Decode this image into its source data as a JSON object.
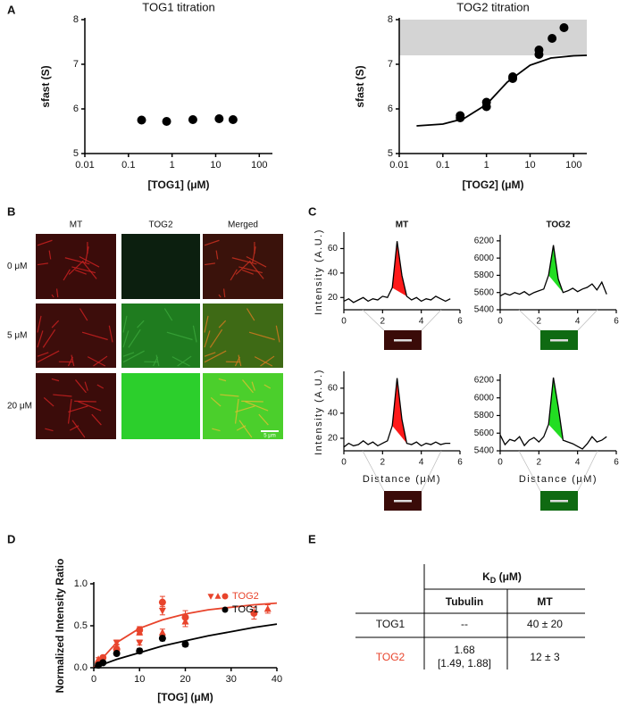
{
  "panel_labels": [
    "A",
    "B",
    "C",
    "D",
    "E"
  ],
  "chart_data": [
    {
      "type": "scatter",
      "title": "TOG1 titration",
      "x_label": "[TOG1] (μM)",
      "y_label": "sfast (S)",
      "xscale": "log",
      "xlim": [
        0.01,
        200
      ],
      "xticks": [
        0.01,
        0.1,
        1,
        10,
        100
      ],
      "ylim": [
        5,
        8
      ],
      "yticks": [
        5,
        6,
        7,
        8
      ],
      "series": [
        {
          "color": "#000000",
          "marker": "circle",
          "x": [
            0.2,
            0.75,
            3,
            12,
            25
          ],
          "values": [
            5.75,
            5.72,
            5.76,
            5.78,
            5.76
          ]
        }
      ]
    },
    {
      "type": "scatter",
      "title": "TOG2 titration",
      "x_label": "[TOG2] (μM)",
      "y_label": "sfast (S)",
      "xscale": "log",
      "xlim": [
        0.01,
        200
      ],
      "xticks": [
        0.01,
        0.1,
        1,
        10,
        100
      ],
      "ylim": [
        5,
        8
      ],
      "yticks": [
        5,
        6,
        7,
        8
      ],
      "band": [
        7.2,
        8
      ],
      "band_color": "#d4d4d4",
      "series": [
        {
          "color": "#000000",
          "marker": "circle",
          "x": [
            0.25,
            0.25,
            1,
            1,
            4,
            4,
            16,
            16,
            32,
            60
          ],
          "values": [
            5.8,
            5.85,
            6.05,
            6.15,
            6.68,
            6.72,
            7.22,
            7.32,
            7.58,
            7.82
          ],
          "fit": {
            "x": [
              0.025,
              0.1,
              0.3,
              1,
              3,
              10,
              30,
              100,
              200
            ],
            "values": [
              5.62,
              5.66,
              5.78,
              6.1,
              6.6,
              6.98,
              7.14,
              7.19,
              7.2
            ]
          }
        }
      ]
    },
    {
      "type": "line",
      "title": "MT",
      "y_label": "Intensity (A.U.)",
      "xlim": [
        0,
        6
      ],
      "xticks": [
        0,
        2,
        4,
        6
      ],
      "ylim": [
        10,
        72
      ],
      "yticks": [
        20,
        40,
        60
      ],
      "series": [
        {
          "color": "#000000",
          "highlight": [
            2.4,
            3.3
          ],
          "highlight_color": "#ff1a1a",
          "x": [
            0,
            0.25,
            0.5,
            0.75,
            1,
            1.25,
            1.5,
            1.75,
            2,
            2.25,
            2.5,
            2.75,
            3,
            3.25,
            3.5,
            3.75,
            4,
            4.25,
            4.5,
            4.75,
            5,
            5.25,
            5.5
          ],
          "values": [
            17,
            19,
            16,
            18,
            20,
            17,
            19,
            18,
            21,
            20,
            28,
            66,
            38,
            21,
            18,
            20,
            17,
            19,
            18,
            21,
            19,
            17,
            19
          ]
        }
      ]
    },
    {
      "type": "line",
      "title": "TOG2",
      "xlim": [
        0,
        6
      ],
      "xticks": [
        0,
        2,
        4,
        6
      ],
      "ylim": [
        5400,
        6250
      ],
      "yticks": [
        5400,
        5600,
        5800,
        6000,
        6200
      ],
      "series": [
        {
          "color": "#000000",
          "highlight": [
            2.4,
            3.3
          ],
          "highlight_color": "#22dd22",
          "x": [
            0,
            0.25,
            0.5,
            0.75,
            1,
            1.25,
            1.5,
            1.75,
            2,
            2.25,
            2.5,
            2.75,
            3,
            3.25,
            3.5,
            3.75,
            4,
            4.25,
            4.5,
            4.75,
            5,
            5.25,
            5.5
          ],
          "values": [
            5560,
            5590,
            5570,
            5600,
            5580,
            5610,
            5570,
            5600,
            5620,
            5640,
            5800,
            6150,
            5760,
            5600,
            5620,
            5650,
            5610,
            5640,
            5660,
            5700,
            5630,
            5720,
            5580
          ]
        }
      ]
    },
    {
      "type": "line",
      "x_label": "Distance (μM)",
      "y_label": "Intensity (A.U.)",
      "xlim": [
        0,
        6
      ],
      "xticks": [
        0,
        2,
        4,
        6
      ],
      "ylim": [
        10,
        72
      ],
      "yticks": [
        20,
        40,
        60
      ],
      "series": [
        {
          "color": "#000000",
          "highlight": [
            2.4,
            3.3
          ],
          "highlight_color": "#ff1a1a",
          "x": [
            0,
            0.25,
            0.5,
            0.75,
            1,
            1.25,
            1.5,
            1.75,
            2,
            2.25,
            2.5,
            2.75,
            3,
            3.25,
            3.5,
            3.75,
            4,
            4.25,
            4.5,
            4.75,
            5,
            5.25,
            5.5
          ],
          "values": [
            13,
            16,
            14,
            15,
            18,
            15,
            17,
            14,
            16,
            18,
            30,
            68,
            35,
            16,
            15,
            17,
            14,
            16,
            15,
            17,
            15,
            16,
            16
          ]
        }
      ]
    },
    {
      "type": "line",
      "x_label": "Distance (μM)",
      "xlim": [
        0,
        6
      ],
      "xticks": [
        0,
        2,
        4,
        6
      ],
      "ylim": [
        5400,
        6250
      ],
      "yticks": [
        5400,
        5600,
        5800,
        6000,
        6200
      ],
      "series": [
        {
          "color": "#000000",
          "highlight": [
            2.4,
            3.3
          ],
          "highlight_color": "#22dd22",
          "x": [
            0,
            0.25,
            0.5,
            0.75,
            1,
            1.25,
            1.5,
            1.75,
            2,
            2.25,
            2.5,
            2.75,
            3,
            3.25,
            3.5,
            3.75,
            4,
            4.25,
            4.5,
            4.75,
            5,
            5.25,
            5.5
          ],
          "values": [
            5580,
            5470,
            5530,
            5510,
            5560,
            5460,
            5520,
            5550,
            5500,
            5560,
            5700,
            6230,
            5900,
            5520,
            5500,
            5480,
            5450,
            5420,
            5480,
            5560,
            5500,
            5520,
            5560
          ]
        }
      ]
    },
    {
      "type": "scatter",
      "x_label": "[TOG] (μM)",
      "y_label": "Normalized Intensity Ratio",
      "xlim": [
        0,
        40
      ],
      "xticks": [
        0,
        10,
        20,
        30,
        40
      ],
      "ylim": [
        0,
        1
      ],
      "yticks": [
        {
          "value": 0,
          "label": "0.0"
        },
        {
          "value": 0.5,
          "label": "0.5"
        },
        {
          "value": 1,
          "label": "1.0"
        }
      ],
      "series": [
        {
          "name": "TOG2",
          "color": "#e8442c",
          "x": [
            1,
            1,
            2,
            5,
            5,
            5,
            10,
            10,
            10,
            15,
            15,
            15,
            20,
            20,
            35,
            38
          ],
          "values": [
            0.05,
            0.1,
            0.12,
            0.22,
            0.3,
            0.25,
            0.45,
            0.42,
            0.3,
            0.78,
            0.68,
            0.42,
            0.6,
            0.55,
            0.65,
            0.7
          ],
          "errors": [
            0.02,
            0.02,
            0.02,
            0.03,
            0.03,
            0.03,
            0.04,
            0.03,
            0.03,
            0.07,
            0.05,
            0.04,
            0.08,
            0.06,
            0.07,
            0.05
          ],
          "markers": [
            "circle",
            "triangle-up",
            "circle",
            "circle",
            "triangle-down",
            "triangle-up",
            "circle",
            "triangle-up",
            "triangle-down",
            "circle",
            "triangle-down",
            "triangle-up",
            "circle",
            "triangle-up",
            "circle",
            "triangle-up"
          ],
          "fit": {
            "x": [
              0,
              5,
              10,
              15,
              20,
              25,
              30,
              35,
              40
            ],
            "values": [
              0,
              0.3,
              0.47,
              0.57,
              0.64,
              0.69,
              0.72,
              0.75,
              0.77
            ]
          }
        },
        {
          "name": "TOG1",
          "color": "#000000",
          "marker": "circle",
          "x": [
            1,
            2,
            5,
            10,
            15,
            20
          ],
          "values": [
            0.03,
            0.06,
            0.17,
            0.2,
            0.35,
            0.28
          ],
          "errors": [
            0.02,
            0.02,
            0.02,
            0.03,
            0.03,
            0.03
          ],
          "fit": {
            "x": [
              0,
              5,
              10,
              15,
              20,
              25,
              30,
              35,
              40
            ],
            "values": [
              0,
              0.1,
              0.18,
              0.26,
              0.32,
              0.38,
              0.43,
              0.48,
              0.52
            ]
          }
        }
      ]
    }
  ],
  "microscopy": {
    "columns": [
      "MT",
      "TOG2",
      "Merged"
    ],
    "rows": [
      "0 μM",
      "5 μM",
      "20 μM"
    ],
    "scale_bar": "5 μm"
  },
  "table": {
    "header": {
      "main": "K",
      "sub": "D",
      "rest": " (μM)"
    },
    "columns": [
      "Tubulin",
      "MT"
    ],
    "rows": [
      {
        "label": "TOG1",
        "cells": [
          "--",
          "40 ± 20"
        ]
      },
      {
        "label": "TOG2",
        "cells": [
          [
            "1.68",
            "[1.49, 1.88]"
          ],
          "12 ± 3"
        ]
      }
    ]
  }
}
